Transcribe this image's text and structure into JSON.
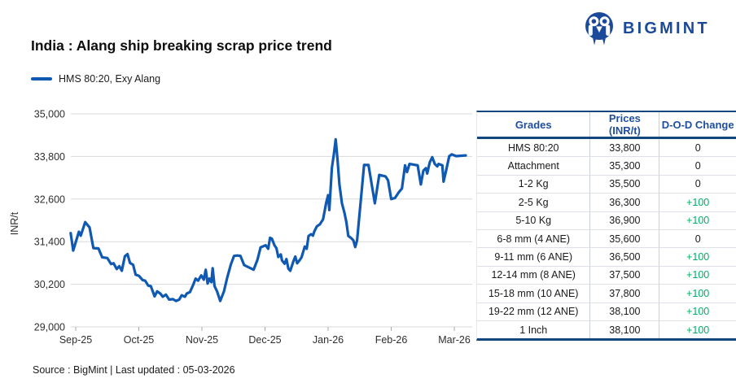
{
  "brand": {
    "name": "BIGMINT"
  },
  "title": "India : Alang ship breaking scrap price trend",
  "legend": {
    "label": "HMS 80:20, Exy Alang"
  },
  "source_note": "Source : BigMint | Last updated : 05-03-2026",
  "colors": {
    "brand_blue": "#1b4a9b",
    "line_blue": "#0f59b2",
    "header_blue": "#1f4e9e",
    "border_navy": "#14467e",
    "positive_green": "#00ad64",
    "grid": "#d9d9d9",
    "tick": "#a8a8a8"
  },
  "table": {
    "columns": [
      "Grades",
      "Prices (INR/t)",
      "D-O-D Change"
    ],
    "rows": [
      {
        "grade": "HMS 80:20",
        "price": "33,800",
        "change": "0"
      },
      {
        "grade": "Attachment",
        "price": "35,300",
        "change": "0"
      },
      {
        "grade": "1-2 Kg",
        "price": "35,500",
        "change": "0"
      },
      {
        "grade": "2-5 Kg",
        "price": "36,300",
        "change": "+100"
      },
      {
        "grade": "5-10 Kg",
        "price": "36,900",
        "change": "+100"
      },
      {
        "grade": "6-8 mm (4 ANE)",
        "price": "35,600",
        "change": "0"
      },
      {
        "grade": "9-11 mm (6 ANE)",
        "price": "36,500",
        "change": "+100"
      },
      {
        "grade": "12-14 mm (8 ANE)",
        "price": "37,500",
        "change": "+100"
      },
      {
        "grade": "15-18 mm (10 ANE)",
        "price": "37,800",
        "change": "+100"
      },
      {
        "grade": "19-22 mm (12 ANE)",
        "price": "38,100",
        "change": "+100"
      },
      {
        "grade": "1 Inch",
        "price": "38,100",
        "change": "+100"
      }
    ]
  },
  "chart_data": {
    "type": "line",
    "title": "India : Alang ship breaking scrap price trend",
    "ylabel": "INR/t",
    "xlabel": "",
    "ylim": [
      29000,
      35000
    ],
    "grid": true,
    "legend_position": "top-left",
    "yticks": [
      {
        "v": 29000,
        "label": "29,000"
      },
      {
        "v": 30200,
        "label": "30,200"
      },
      {
        "v": 31400,
        "label": "31,400"
      },
      {
        "v": 32600,
        "label": "32,600"
      },
      {
        "v": 33800,
        "label": "33,800"
      },
      {
        "v": 35000,
        "label": "35,000"
      }
    ],
    "xticks": [
      {
        "m": 0,
        "label": "Sep-25"
      },
      {
        "m": 1,
        "label": "Oct-25"
      },
      {
        "m": 2,
        "label": "Nov-25"
      },
      {
        "m": 3,
        "label": "Dec-25"
      },
      {
        "m": 4,
        "label": "Jan-26"
      },
      {
        "m": 5,
        "label": "Feb-26"
      },
      {
        "m": 6,
        "label": "Mar-26"
      }
    ],
    "series": [
      {
        "name": "HMS 80:20, Exy Alang",
        "color": "#0f59b2",
        "points": [
          [
            -0.08,
            31640
          ],
          [
            -0.04,
            31150
          ],
          [
            0.05,
            31680
          ],
          [
            0.08,
            31570
          ],
          [
            0.15,
            31950
          ],
          [
            0.22,
            31800
          ],
          [
            0.28,
            31220
          ],
          [
            0.36,
            31210
          ],
          [
            0.42,
            30960
          ],
          [
            0.5,
            30940
          ],
          [
            0.56,
            30770
          ],
          [
            0.6,
            30790
          ],
          [
            0.65,
            30630
          ],
          [
            0.69,
            30710
          ],
          [
            0.73,
            30580
          ],
          [
            0.78,
            30990
          ],
          [
            0.82,
            31050
          ],
          [
            0.86,
            30800
          ],
          [
            0.91,
            30750
          ],
          [
            0.95,
            30470
          ],
          [
            1.0,
            30440
          ],
          [
            1.06,
            30320
          ],
          [
            1.1,
            30300
          ],
          [
            1.15,
            30160
          ],
          [
            1.19,
            30150
          ],
          [
            1.25,
            29860
          ],
          [
            1.29,
            30000
          ],
          [
            1.34,
            29940
          ],
          [
            1.38,
            29850
          ],
          [
            1.43,
            29910
          ],
          [
            1.48,
            29770
          ],
          [
            1.54,
            29780
          ],
          [
            1.59,
            29730
          ],
          [
            1.64,
            29770
          ],
          [
            1.68,
            29890
          ],
          [
            1.73,
            29850
          ],
          [
            1.76,
            29940
          ],
          [
            1.81,
            29980
          ],
          [
            1.86,
            30180
          ],
          [
            1.9,
            30360
          ],
          [
            1.94,
            30300
          ],
          [
            1.99,
            30450
          ],
          [
            2.03,
            30330
          ],
          [
            2.06,
            30610
          ],
          [
            2.09,
            30220
          ],
          [
            2.12,
            30360
          ],
          [
            2.15,
            30260
          ],
          [
            2.17,
            30650
          ],
          [
            2.2,
            30150
          ],
          [
            2.24,
            30000
          ],
          [
            2.29,
            29730
          ],
          [
            2.35,
            30000
          ],
          [
            2.4,
            30380
          ],
          [
            2.46,
            30760
          ],
          [
            2.51,
            31000
          ],
          [
            2.56,
            31010
          ],
          [
            2.61,
            31000
          ],
          [
            2.67,
            30740
          ],
          [
            2.82,
            30610
          ],
          [
            2.88,
            30890
          ],
          [
            2.93,
            31240
          ],
          [
            3.01,
            31300
          ],
          [
            3.05,
            31200
          ],
          [
            3.08,
            31510
          ],
          [
            3.11,
            31480
          ],
          [
            3.15,
            31300
          ],
          [
            3.18,
            31220
          ],
          [
            3.21,
            30970
          ],
          [
            3.25,
            31040
          ],
          [
            3.27,
            30870
          ],
          [
            3.31,
            30780
          ],
          [
            3.34,
            30910
          ],
          [
            3.37,
            30640
          ],
          [
            3.4,
            30580
          ],
          [
            3.45,
            30850
          ],
          [
            3.48,
            30980
          ],
          [
            3.51,
            30790
          ],
          [
            3.55,
            30880
          ],
          [
            3.58,
            30960
          ],
          [
            3.63,
            31260
          ],
          [
            3.66,
            31200
          ],
          [
            3.69,
            31560
          ],
          [
            3.73,
            31610
          ],
          [
            3.76,
            31570
          ],
          [
            3.78,
            31680
          ],
          [
            3.82,
            31830
          ],
          [
            3.87,
            31890
          ],
          [
            3.92,
            32030
          ],
          [
            3.97,
            32500
          ],
          [
            4.0,
            32710
          ],
          [
            4.02,
            32290
          ],
          [
            4.06,
            33470
          ],
          [
            4.09,
            33850
          ],
          [
            4.12,
            34280
          ],
          [
            4.15,
            33700
          ],
          [
            4.18,
            33010
          ],
          [
            4.22,
            32480
          ],
          [
            4.26,
            32210
          ],
          [
            4.29,
            31940
          ],
          [
            4.32,
            31560
          ],
          [
            4.36,
            31510
          ],
          [
            4.4,
            31440
          ],
          [
            4.43,
            31250
          ],
          [
            4.46,
            31440
          ],
          [
            4.57,
            33560
          ],
          [
            4.64,
            33560
          ],
          [
            4.74,
            32480
          ],
          [
            4.81,
            33280
          ],
          [
            4.91,
            33240
          ],
          [
            4.95,
            33130
          ],
          [
            5.0,
            32600
          ],
          [
            5.06,
            32630
          ],
          [
            5.12,
            32790
          ],
          [
            5.17,
            32900
          ],
          [
            5.22,
            33550
          ],
          [
            5.25,
            33360
          ],
          [
            5.29,
            33590
          ],
          [
            5.42,
            33550
          ],
          [
            5.47,
            33010
          ],
          [
            5.51,
            33400
          ],
          [
            5.55,
            33470
          ],
          [
            5.57,
            33320
          ],
          [
            5.61,
            33630
          ],
          [
            5.65,
            33780
          ],
          [
            5.69,
            33590
          ],
          [
            5.73,
            33520
          ],
          [
            5.75,
            33590
          ],
          [
            5.81,
            33550
          ],
          [
            5.83,
            33090
          ],
          [
            5.87,
            33400
          ],
          [
            5.92,
            33810
          ],
          [
            5.96,
            33860
          ],
          [
            6.03,
            33810
          ],
          [
            6.18,
            33830
          ]
        ]
      }
    ]
  }
}
